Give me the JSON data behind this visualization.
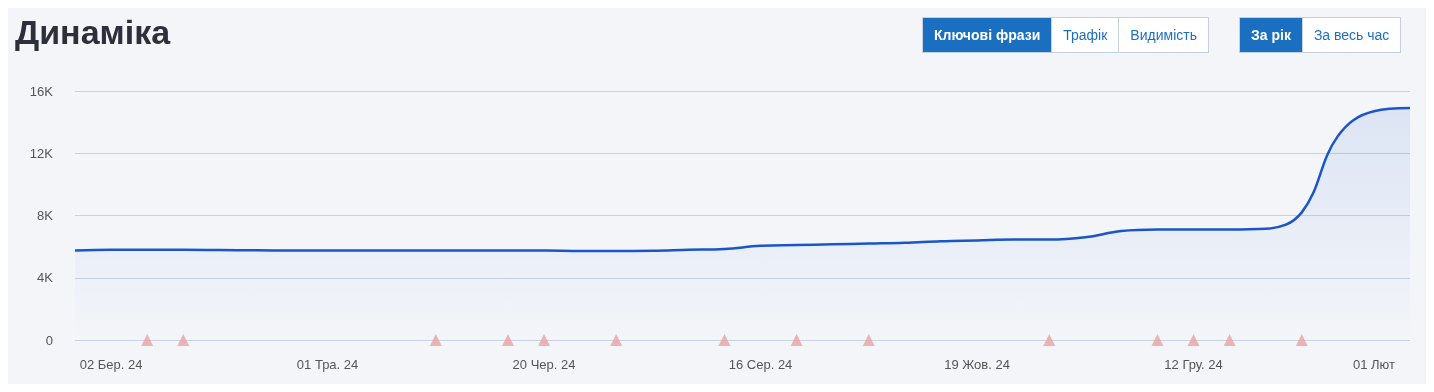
{
  "chart_data": {
    "type": "area",
    "title": "Динаміка",
    "annotations": [
      "Ключові фрази",
      "Трафік",
      "Видимість",
      "За рік",
      "За весь час"
    ],
    "categories": [
      null,
      "02 Бер. 24",
      null,
      null,
      null,
      null,
      null,
      "01 Тра. 24",
      null,
      null,
      null,
      null,
      null,
      "20 Чер. 24",
      null,
      null,
      null,
      null,
      null,
      "16 Сер. 24",
      null,
      null,
      null,
      null,
      null,
      "19 Жов. 24",
      null,
      null,
      null,
      null,
      null,
      "12 Гру. 24",
      null,
      null,
      null,
      null,
      "01 Лют",
      null
    ],
    "series": [
      {
        "color": "#1a56c8",
        "values": [
          5750,
          5800,
          5800,
          5800,
          5780,
          5760,
          5750,
          5750,
          5750,
          5750,
          5750,
          5750,
          5750,
          5750,
          5720,
          5720,
          5740,
          5800,
          5850,
          6050,
          6100,
          6150,
          6200,
          6250,
          6350,
          6400,
          6450,
          6450,
          6600,
          7000,
          7100,
          7100,
          7100,
          7150,
          8200,
          13100,
          14700,
          14900
        ]
      },
      {
        "type": "scatter",
        "color": "#e8a3a3",
        "marker": "triangle",
        "values": [
          null,
          null,
          0,
          0,
          null,
          null,
          null,
          null,
          null,
          null,
          0,
          null,
          0,
          0,
          null,
          0,
          null,
          null,
          0,
          null,
          0,
          null,
          0,
          null,
          null,
          null,
          null,
          0,
          null,
          null,
          0,
          0,
          0,
          null,
          0,
          null,
          null,
          null
        ]
      }
    ],
    "ylim": [
      0,
      16000
    ],
    "yticks": [
      0,
      {
        "value": 4000,
        "label": "4K"
      },
      {
        "value": 8000,
        "label": "8K"
      },
      {
        "value": 12000,
        "label": "12K"
      },
      {
        "value": 16000,
        "label": "16K"
      }
    ],
    "grid": "y"
  }
}
